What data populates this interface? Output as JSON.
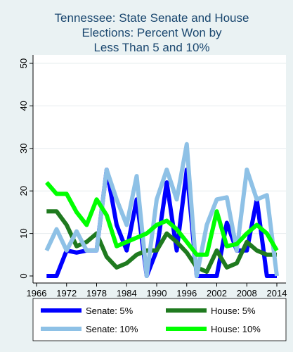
{
  "chart_data": {
    "type": "line",
    "title_lines": [
      "Tennessee: State Senate and House",
      "Elections: Percent Won by",
      "Less Than 5 and 10%"
    ],
    "xlabel": "",
    "ylabel": "",
    "xlim": [
      1965,
      2015
    ],
    "ylim": [
      0,
      50
    ],
    "x_ticks": [
      1966,
      1972,
      1978,
      1984,
      1990,
      1996,
      2002,
      2008,
      2014
    ],
    "y_ticks": [
      0,
      10,
      20,
      30,
      40,
      50
    ],
    "grid": true,
    "legend_position": "bottom",
    "series": [
      {
        "name": "Senate: 5%",
        "color": "#0000ff",
        "x": [
          1968,
          1970,
          1972,
          1974,
          1976,
          1978,
          1980,
          1982,
          1984,
          1986,
          1988,
          1990,
          1992,
          1994,
          1996,
          1998,
          2000,
          2002,
          2004,
          2006,
          2008,
          2010,
          2012,
          2014
        ],
        "values": [
          0,
          0,
          6,
          5.5,
          6,
          6,
          25,
          12,
          6,
          18,
          0,
          6,
          22,
          6,
          25,
          0,
          0,
          0,
          12.5,
          6,
          6,
          18,
          0,
          0
        ]
      },
      {
        "name": "House: 5%",
        "color": "#1f7a1f",
        "x": [
          1968,
          1970,
          1972,
          1974,
          1976,
          1978,
          1980,
          1982,
          1984,
          1986,
          1988,
          1990,
          1992,
          1994,
          1996,
          1998,
          2000,
          2002,
          2004,
          2006,
          2008,
          2010,
          2012,
          2014
        ],
        "values": [
          15.2,
          15.2,
          12,
          7,
          8,
          10,
          4.5,
          2,
          3,
          5,
          6,
          6,
          10,
          8,
          5.5,
          2,
          1,
          6,
          2,
          3,
          8,
          6,
          5,
          5
        ]
      },
      {
        "name": "Senate: 10%",
        "color": "#8ec1e6",
        "x": [
          1968,
          1970,
          1972,
          1974,
          1976,
          1978,
          1980,
          1982,
          1984,
          1986,
          1988,
          1990,
          1992,
          1994,
          1996,
          1998,
          2000,
          2002,
          2004,
          2006,
          2008,
          2010,
          2012,
          2014
        ],
        "values": [
          6,
          11,
          6,
          10.5,
          6,
          6,
          25,
          18,
          12,
          23.5,
          0,
          18,
          25,
          18,
          31,
          0,
          12,
          18,
          18.5,
          6,
          25,
          18,
          19,
          0
        ]
      },
      {
        "name": "House: 10%",
        "color": "#00ff00",
        "x": [
          1968,
          1970,
          1972,
          1974,
          1976,
          1978,
          1980,
          1982,
          1984,
          1986,
          1988,
          1990,
          1992,
          1994,
          1996,
          1998,
          2000,
          2002,
          2004,
          2006,
          2008,
          2010,
          2012,
          2014
        ],
        "values": [
          22,
          19.3,
          19.3,
          15,
          12,
          18,
          14.3,
          7,
          8,
          9,
          10,
          12,
          13,
          11,
          8,
          5,
          5,
          15.2,
          7,
          7.5,
          10,
          12,
          10,
          6
        ]
      }
    ]
  }
}
